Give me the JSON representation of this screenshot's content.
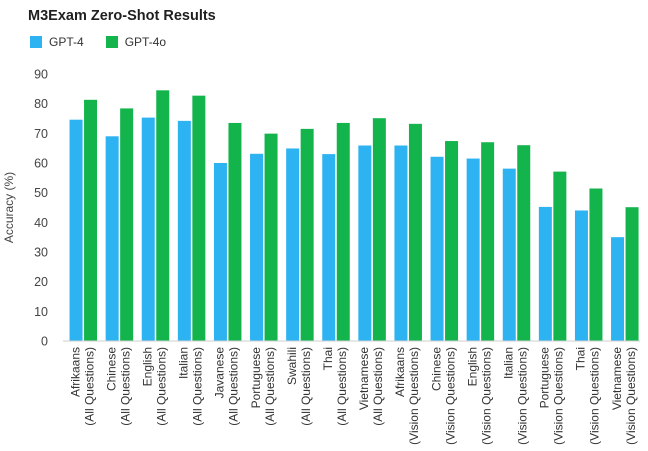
{
  "chart_data": {
    "type": "bar",
    "title": "M3Exam Zero-Shot Results",
    "xlabel": "",
    "ylabel": "Accuracy (%)",
    "ylim": [
      0,
      90
    ],
    "yticks": [
      0,
      10,
      20,
      30,
      40,
      50,
      60,
      70,
      80,
      90
    ],
    "grid": false,
    "legend_position": "top-left",
    "categories": [
      [
        "Afrikaans",
        "(All Questions)"
      ],
      [
        "Chinese",
        "(All Questions)"
      ],
      [
        "English",
        "(All Questions)"
      ],
      [
        "Italian",
        "(All Questions)"
      ],
      [
        "Javanese",
        "(All Questions)"
      ],
      [
        "Portuguese",
        "(All Questions)"
      ],
      [
        "Swahili",
        "(All Questions)"
      ],
      [
        "Thai",
        "(All Questions)"
      ],
      [
        "Vietnamese",
        "(All Questions)"
      ],
      [
        "Afrikaans",
        "(Vision Questions)"
      ],
      [
        "Chinese",
        "(Vision Questions)"
      ],
      [
        "English",
        "(Vision Questions)"
      ],
      [
        "Italian",
        "(Vision Questions)"
      ],
      [
        "Portuguese",
        "(Vision Questions)"
      ],
      [
        "Thai",
        "(Vision Questions)"
      ],
      [
        "Vietnamese",
        "(Vision Questions)"
      ]
    ],
    "series": [
      {
        "name": "GPT-4",
        "color": "#2db2f2",
        "values": [
          74.6,
          69.0,
          75.3,
          74.2,
          60.0,
          63.1,
          64.9,
          63.0,
          65.9,
          65.9,
          62.1,
          61.5,
          58.1,
          45.2,
          44.0,
          35.0
        ]
      },
      {
        "name": "GPT-4o",
        "color": "#13b44c",
        "values": [
          81.3,
          78.4,
          84.5,
          82.7,
          73.5,
          69.9,
          71.5,
          73.5,
          75.1,
          73.2,
          67.4,
          67.0,
          66.0,
          57.1,
          51.4,
          45.1
        ]
      }
    ]
  }
}
